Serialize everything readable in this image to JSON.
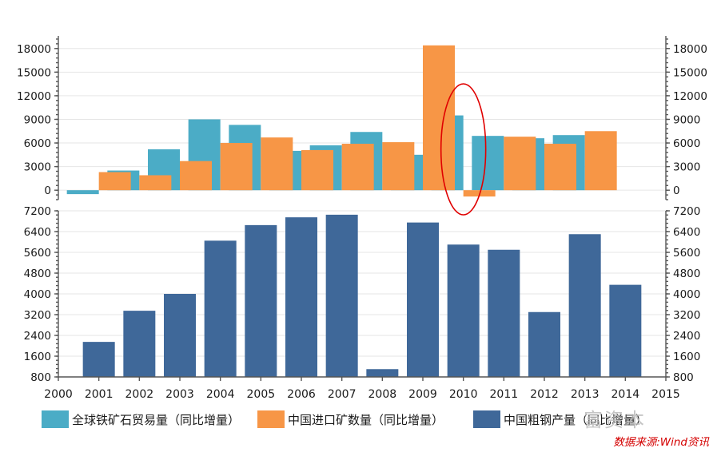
{
  "chart_data": [
    {
      "type": "bar",
      "categories": [
        "2001",
        "2002",
        "2003",
        "2004",
        "2005",
        "2006",
        "2007",
        "2008",
        "2009",
        "2010",
        "2011",
        "2012",
        "2013"
      ],
      "series": [
        {
          "name": "全球铁矿石贸易量（同比增量）",
          "color": "#4bacc6",
          "values": [
            -500,
            2500,
            5200,
            9000,
            8300,
            5000,
            5700,
            7400,
            4500,
            9500,
            6900,
            6600,
            7000
          ]
        },
        {
          "name": "中国进口矿数量（同比增量）",
          "color": "#f79646",
          "values": [
            2300,
            1900,
            3700,
            6000,
            6700,
            5100,
            5900,
            6100,
            18400,
            -800,
            6800,
            5900,
            7500
          ]
        }
      ],
      "ylim": [
        -1200,
        19600
      ],
      "yticks": [
        0,
        3000,
        6000,
        9000,
        12000,
        15000,
        18000
      ],
      "annotation": {
        "type": "ellipse",
        "category": "2010",
        "color": "#e00000"
      }
    },
    {
      "type": "bar",
      "categories": [
        "2001",
        "2002",
        "2003",
        "2004",
        "2005",
        "2006",
        "2007",
        "2008",
        "2009",
        "2010",
        "2011",
        "2012",
        "2013",
        "2014"
      ],
      "series": [
        {
          "name": "中国粗钢产量（同比增量）",
          "color": "#3f6899",
          "values": [
            2150,
            3350,
            4000,
            6050,
            6650,
            6950,
            7050,
            1100,
            6750,
            5900,
            5700,
            3300,
            6300,
            4350
          ]
        }
      ],
      "ylim": [
        800,
        7200
      ],
      "yticks": [
        800,
        1600,
        2400,
        3200,
        4000,
        4800,
        5600,
        6400,
        7200
      ]
    }
  ],
  "x_axis": {
    "range": [
      2000,
      2015
    ],
    "labels": [
      "2000",
      "2001",
      "2002",
      "2003",
      "2004",
      "2005",
      "2006",
      "2007",
      "2008",
      "2009",
      "2010",
      "2011",
      "2012",
      "2013",
      "2014",
      "2015"
    ]
  },
  "legend": [
    {
      "label": "全球铁矿石贸易量（同比增量）",
      "color": "#4bacc6"
    },
    {
      "label": "中国进口矿数量（同比增量）",
      "color": "#f79646"
    },
    {
      "label": "中国粗钢产量（同比增量）",
      "color": "#3f6899"
    }
  ],
  "source": "数据来源:Wind资讯",
  "watermark": "富资本"
}
